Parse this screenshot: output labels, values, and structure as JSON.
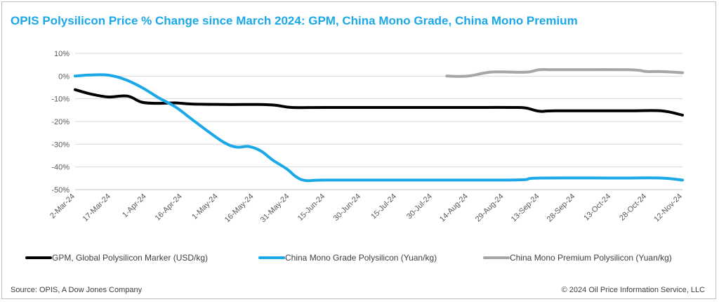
{
  "title": "OPIS  Polysilicon Price %  Change since March 2024: GPM,  China Mono Grade, China Mono Premium",
  "source": "Source: OPIS, A Dow Jones Company",
  "copyright": "© 2024 Oil Price Information Service, LLC",
  "colors": {
    "title": "#1ba8e8",
    "gpm": "#000000",
    "mono_grade": "#1ba8e8",
    "mono_premium": "#a6a6a6",
    "gridline": "#d9d9d9"
  },
  "chart_data": {
    "type": "line",
    "title": "OPIS  Polysilicon Price %  Change since March 2024: GPM,  China Mono Grade, China Mono Premium",
    "xlabel": "",
    "ylabel": "",
    "ylim": [
      -50,
      10
    ],
    "yticks": [
      10,
      0,
      -10,
      -20,
      -30,
      -40,
      -50
    ],
    "ytick_labels": [
      "10%",
      "0%",
      "-10%",
      "-20%",
      "-30%",
      "-40%",
      "-50%"
    ],
    "xlim": [
      "2024-03-02",
      "2024-11-12"
    ],
    "xtick_dates": [
      "2024-03-02",
      "2024-03-17",
      "2024-04-01",
      "2024-04-16",
      "2024-05-01",
      "2024-05-16",
      "2024-05-31",
      "2024-06-15",
      "2024-06-30",
      "2024-07-15",
      "2024-07-30",
      "2024-08-14",
      "2024-08-29",
      "2024-09-13",
      "2024-09-28",
      "2024-10-13",
      "2024-10-28",
      "2024-11-12"
    ],
    "xtick_labels": [
      "2-Mar-24",
      "17-Mar-24",
      "1-Apr-24",
      "16-Apr-24",
      "1-May-24",
      "16-May-24",
      "31-May-24",
      "15-Jun-24",
      "30-Jun-24",
      "15-Jul-24",
      "30-Jul-24",
      "14-Aug-24",
      "29-Aug-24",
      "13-Sep-24",
      "28-Sep-24",
      "13-Oct-24",
      "28-Oct-24",
      "12-Nov-24"
    ],
    "grid": "horizontal",
    "legend_position": "bottom",
    "series": [
      {
        "name": "GPM, Global Polysilicon Marker (USD/kg)",
        "color": "#000000",
        "points": [
          [
            "2024-03-02",
            -6
          ],
          [
            "2024-03-09",
            -8
          ],
          [
            "2024-03-16",
            -9.2
          ],
          [
            "2024-03-24",
            -8.8
          ],
          [
            "2024-03-30",
            -11.5
          ],
          [
            "2024-04-06",
            -12
          ],
          [
            "2024-04-13",
            -11.8
          ],
          [
            "2024-04-20",
            -12.3
          ],
          [
            "2024-05-04",
            -12.5
          ],
          [
            "2024-05-18",
            -12.5
          ],
          [
            "2024-05-25",
            -12.8
          ],
          [
            "2024-06-01",
            -13.8
          ],
          [
            "2024-06-15",
            -13.8
          ],
          [
            "2024-07-15",
            -13.8
          ],
          [
            "2024-08-14",
            -13.8
          ],
          [
            "2024-08-31",
            -13.8
          ],
          [
            "2024-09-07",
            -14
          ],
          [
            "2024-09-13",
            -15.5
          ],
          [
            "2024-09-20",
            -15.3
          ],
          [
            "2024-10-20",
            -15.3
          ],
          [
            "2024-11-03",
            -15.3
          ],
          [
            "2024-11-12",
            -17.2
          ]
        ]
      },
      {
        "name": "China Mono Grade Polysilicon (Yuan/kg)",
        "color": "#1ba8e8",
        "points": [
          [
            "2024-03-02",
            0
          ],
          [
            "2024-03-09",
            0.5
          ],
          [
            "2024-03-16",
            0.4
          ],
          [
            "2024-03-23",
            -1.5
          ],
          [
            "2024-03-30",
            -5
          ],
          [
            "2024-04-06",
            -9.5
          ],
          [
            "2024-04-13",
            -13.5
          ],
          [
            "2024-04-20",
            -19
          ],
          [
            "2024-04-27",
            -24.5
          ],
          [
            "2024-05-04",
            -29.5
          ],
          [
            "2024-05-09",
            -31.3
          ],
          [
            "2024-05-14",
            -31
          ],
          [
            "2024-05-19",
            -33
          ],
          [
            "2024-05-24",
            -37
          ],
          [
            "2024-05-30",
            -41
          ],
          [
            "2024-06-03",
            -44.5
          ],
          [
            "2024-06-07",
            -46
          ],
          [
            "2024-06-15",
            -45.8
          ],
          [
            "2024-07-15",
            -45.8
          ],
          [
            "2024-08-14",
            -45.8
          ],
          [
            "2024-08-31",
            -45.8
          ],
          [
            "2024-09-07",
            -45.6
          ],
          [
            "2024-09-13",
            -44.9
          ],
          [
            "2024-10-15",
            -44.9
          ],
          [
            "2024-11-03",
            -44.9
          ],
          [
            "2024-11-12",
            -45.8
          ]
        ]
      },
      {
        "name": "China Mono Premium Polysilicon (Yuan/kg)",
        "color": "#a6a6a6",
        "points": [
          [
            "2024-08-05",
            0
          ],
          [
            "2024-08-14",
            0
          ],
          [
            "2024-08-24",
            1.8
          ],
          [
            "2024-09-07",
            1.7
          ],
          [
            "2024-09-13",
            2.8
          ],
          [
            "2024-09-20",
            2.8
          ],
          [
            "2024-10-20",
            2.8
          ],
          [
            "2024-10-28",
            2
          ],
          [
            "2024-11-03",
            2
          ],
          [
            "2024-11-12",
            1.5
          ]
        ]
      }
    ]
  }
}
